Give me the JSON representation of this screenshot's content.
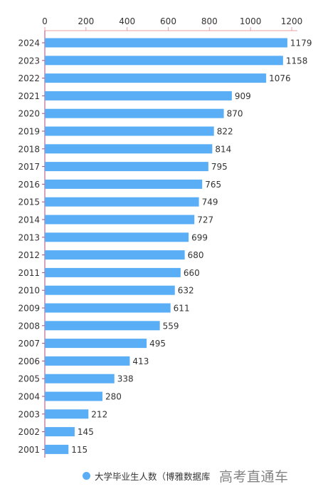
{
  "colors": {
    "bar": "#5aaef5",
    "axis": "#e8a0a0",
    "y_axis": "#b04a7a",
    "text": "#333333"
  },
  "legend": {
    "label": "大学毕业生人数（博雅数据库",
    "marker": "circle"
  },
  "watermark": {
    "text": "高考直通车"
  },
  "chart_data": {
    "type": "bar",
    "orientation": "horizontal",
    "x_axis_position": "top",
    "categories": [
      "2024",
      "2023",
      "2022",
      "2021",
      "2020",
      "2019",
      "2018",
      "2017",
      "2016",
      "2015",
      "2014",
      "2013",
      "2012",
      "2011",
      "2010",
      "2009",
      "2008",
      "2007",
      "2006",
      "2005",
      "2004",
      "2003",
      "2002",
      "2001"
    ],
    "values": [
      1179,
      1158,
      1076,
      909,
      870,
      822,
      814,
      795,
      765,
      749,
      727,
      699,
      680,
      660,
      632,
      611,
      559,
      495,
      413,
      338,
      280,
      212,
      145,
      115
    ],
    "xlim": [
      0,
      1200
    ],
    "xticks": [
      0,
      200,
      400,
      600,
      800,
      1000,
      1200
    ],
    "title": "",
    "xlabel": "",
    "ylabel": "",
    "grid": false,
    "legend_position": "bottom"
  }
}
